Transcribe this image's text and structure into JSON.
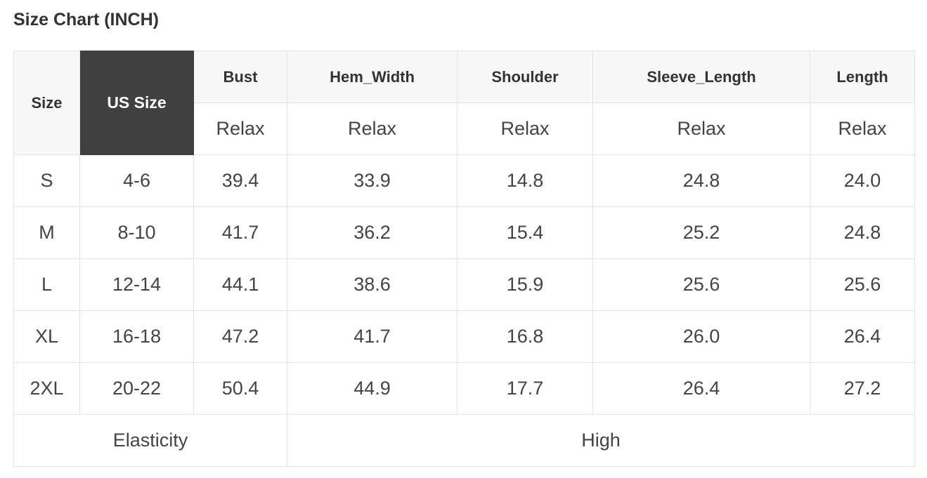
{
  "title": "Size Chart (INCH)",
  "table": {
    "size_header": "Size",
    "us_size_header": "US Size",
    "columns": [
      "Bust",
      "Hem_Width",
      "Shoulder",
      "Sleeve_Length",
      "Length"
    ],
    "subheaders": [
      "Relax",
      "Relax",
      "Relax",
      "Relax",
      "Relax"
    ],
    "rows": [
      [
        "S",
        "4-6",
        "39.4",
        "33.9",
        "14.8",
        "24.8",
        "24.0"
      ],
      [
        "M",
        "8-10",
        "41.7",
        "36.2",
        "15.4",
        "25.2",
        "24.8"
      ],
      [
        "L",
        "12-14",
        "44.1",
        "38.6",
        "15.9",
        "25.6",
        "25.6"
      ],
      [
        "XL",
        "16-18",
        "47.2",
        "41.7",
        "16.8",
        "26.0",
        "26.4"
      ],
      [
        "2XL",
        "20-22",
        "50.4",
        "44.9",
        "17.7",
        "26.4",
        "27.2"
      ]
    ],
    "footer_label": "Elasticity",
    "footer_value": "High"
  },
  "colors": {
    "us_size_header_bg": "#404040",
    "header_bg": "#f7f7f7",
    "border": "#e3e3e3"
  }
}
